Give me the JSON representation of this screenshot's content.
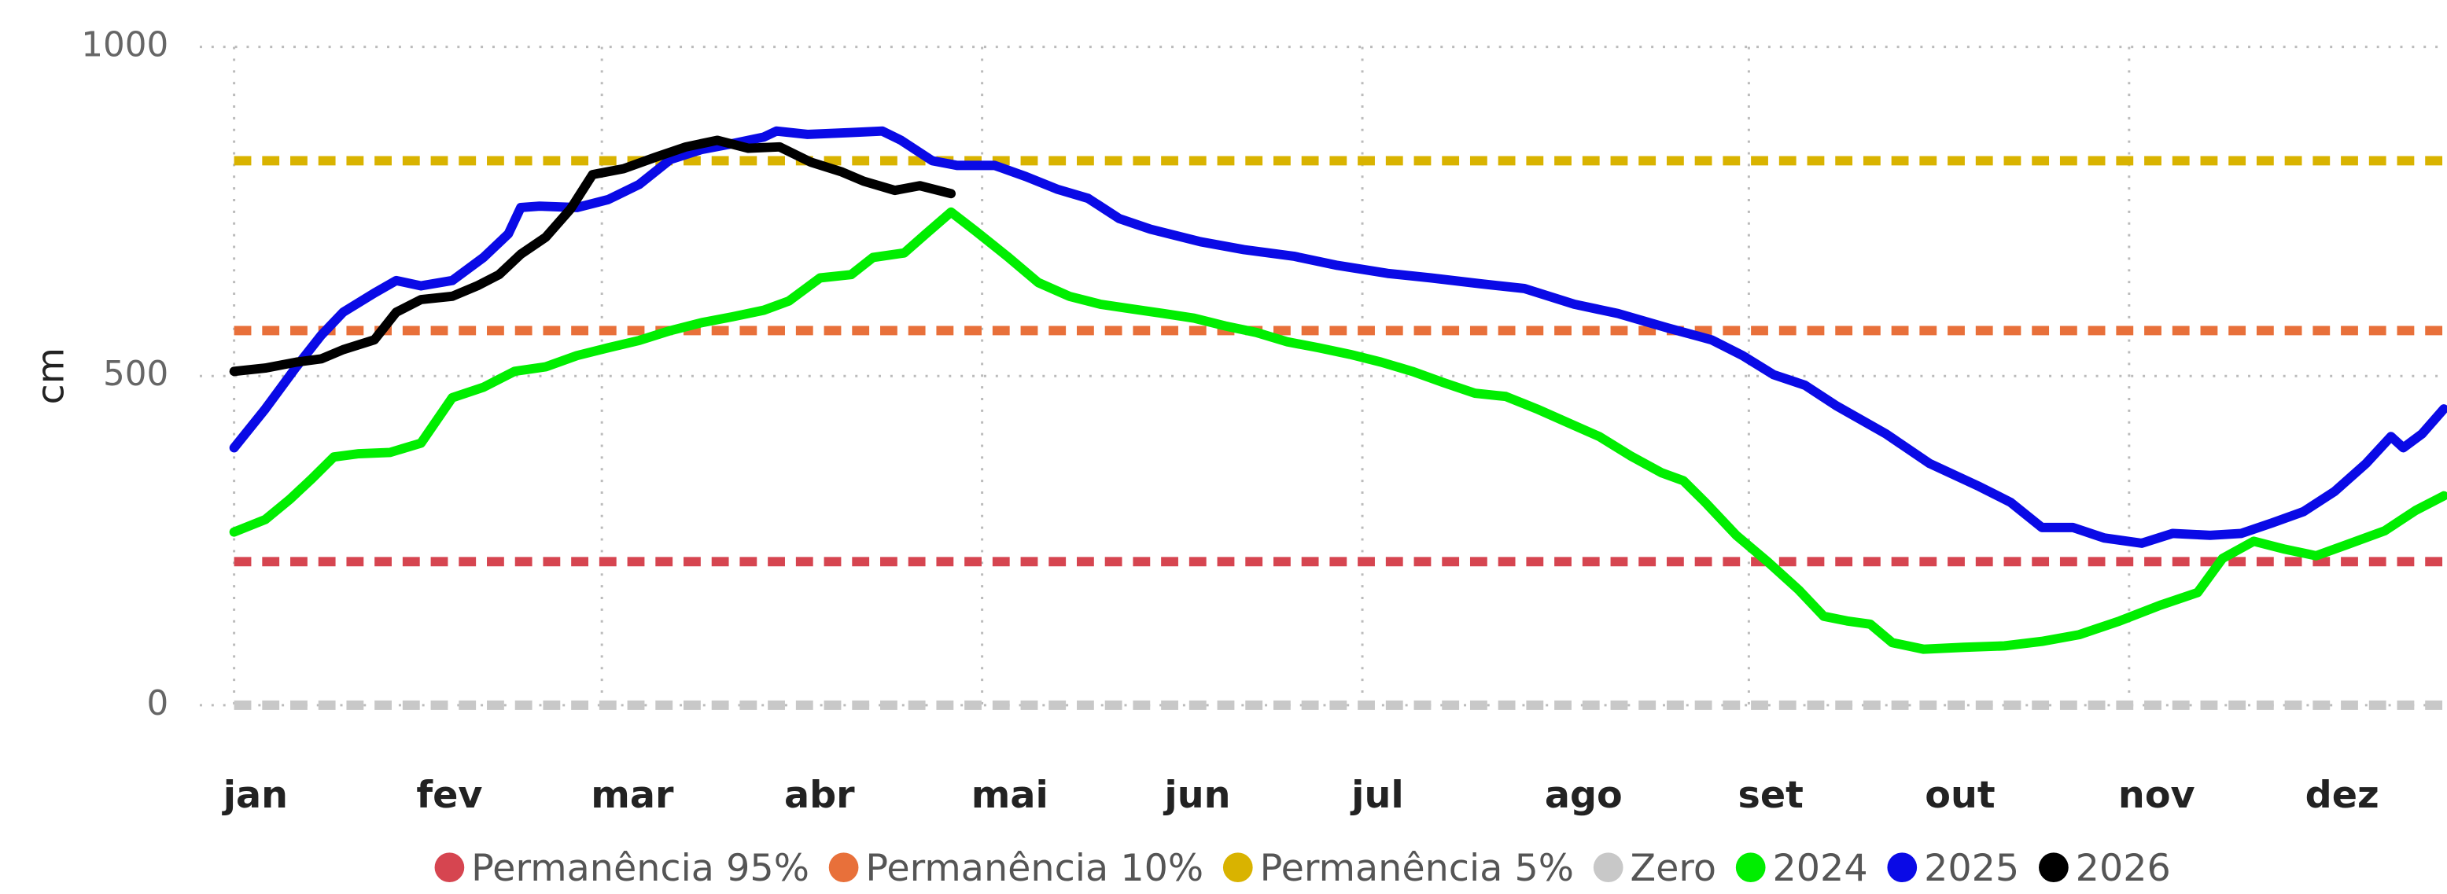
{
  "chart_data": {
    "type": "line",
    "y_label": "cm",
    "xlim": [
      1,
      356
    ],
    "ylim": [
      0,
      1000
    ],
    "yticks": [
      0,
      500,
      1000
    ],
    "xticks": [
      {
        "value": 1,
        "label": "jan"
      },
      {
        "value": 32,
        "label": "fev"
      },
      {
        "value": 60,
        "label": "mar"
      },
      {
        "value": 91,
        "label": "abr"
      },
      {
        "value": 121,
        "label": "mai"
      },
      {
        "value": 152,
        "label": "jun"
      },
      {
        "value": 182,
        "label": "jul"
      },
      {
        "value": 213,
        "label": "ago"
      },
      {
        "value": 244,
        "label": "set"
      },
      {
        "value": 274,
        "label": "out"
      },
      {
        "value": 305,
        "label": "nov"
      },
      {
        "value": 335,
        "label": "dez"
      }
    ],
    "grid": true,
    "reference_lines": [
      {
        "name": "Permanência 95%",
        "color": "#d64550",
        "value": 218
      },
      {
        "name": "Permanência 10%",
        "color": "#e8703a",
        "value": 569
      },
      {
        "name": "Permanência 5%",
        "color": "#d9b300",
        "value": 827
      },
      {
        "name": "Zero",
        "color": "#c8c8c8",
        "value": 0
      }
    ],
    "series": [
      {
        "name": "2024",
        "color": "#00ee00",
        "x": [
          1,
          6,
          10,
          13.5,
          17,
          21,
          26,
          31,
          36,
          41,
          46,
          51,
          56,
          61,
          66,
          71,
          76,
          81,
          86,
          90,
          95,
          100,
          103.5,
          108.5,
          112,
          116,
          120,
          125,
          130,
          135,
          140,
          145,
          150,
          155,
          160,
          165,
          170,
          175,
          180,
          185,
          190,
          195,
          200,
          205,
          210,
          215,
          220,
          225,
          230,
          233.5,
          237,
          242,
          247,
          252,
          256,
          259.75,
          263.5,
          267,
          272,
          278.5,
          285,
          291,
          297,
          303.5,
          310,
          316,
          320,
          325,
          330,
          335,
          340,
          346,
          351,
          355.5
        ],
        "values": [
          263,
          282,
          313,
          344,
          377,
          382,
          384,
          398,
          467,
          483,
          507,
          514,
          531,
          543,
          554,
          569,
          581,
          590,
          600,
          614,
          649,
          654,
          680,
          687,
          716,
          749,
          720,
          682,
          642,
          621,
          609,
          602,
          595,
          588,
          576,
          566,
          552,
          543,
          533,
          521,
          507,
          490,
          474,
          469,
          450,
          429,
          408,
          379,
          353,
          341,
          308,
          258,
          218,
          175,
          135,
          128,
          123,
          95,
          85,
          88,
          90,
          97,
          107,
          128,
          152,
          171,
          223,
          249,
          237,
          227,
          244,
          265,
          296,
          318
        ]
      },
      {
        "name": "2025",
        "color": "#0a0ae6",
        "x": [
          1,
          6,
          11,
          15,
          18.5,
          23.5,
          27,
          31,
          36,
          41,
          45,
          47,
          50,
          56,
          61,
          66,
          71,
          76,
          81,
          86,
          88,
          93,
          100,
          105,
          108,
          113,
          117,
          123,
          128,
          133,
          138,
          143,
          148,
          156,
          163,
          171,
          178,
          186,
          193,
          201,
          208,
          216,
          223,
          231,
          238,
          243,
          248,
          253,
          258,
          266,
          273,
          281,
          286,
          291,
          296,
          301,
          307,
          312,
          318,
          323,
          328,
          333,
          338,
          343,
          347,
          349,
          352,
          355.5
        ],
        "values": [
          391,
          450,
          514,
          562,
          597,
          626,
          645,
          637,
          645,
          680,
          716,
          756,
          758,
          756,
          768,
          791,
          829,
          844,
          853,
          863,
          872,
          867,
          870,
          872,
          858,
          827,
          820,
          820,
          803,
          784,
          770,
          739,
          723,
          704,
          692,
          682,
          668,
          656,
          649,
          640,
          633,
          609,
          595,
          573,
          555,
          531,
          502,
          486,
          455,
          412,
          367,
          332,
          308,
          270,
          270,
          254,
          246,
          261,
          258,
          261,
          277,
          294,
          325,
          367,
          408,
          391,
          412,
          450
        ]
      },
      {
        "name": "2026",
        "color": "#000000",
        "x": [
          1,
          6,
          11,
          15,
          18.5,
          23.5,
          27,
          31,
          36,
          40,
          43.5,
          47,
          51,
          55,
          58.5,
          63.5,
          68.5,
          73.5,
          78.5,
          83.5,
          88.5,
          93.5,
          98.5,
          102,
          107,
          111,
          116
        ],
        "values": [
          507,
          512,
          521,
          526,
          540,
          555,
          597,
          616,
          621,
          637,
          654,
          685,
          711,
          754,
          806,
          815,
          832,
          848,
          858,
          846,
          848,
          825,
          810,
          796,
          782,
          789,
          777
        ]
      }
    ]
  }
}
